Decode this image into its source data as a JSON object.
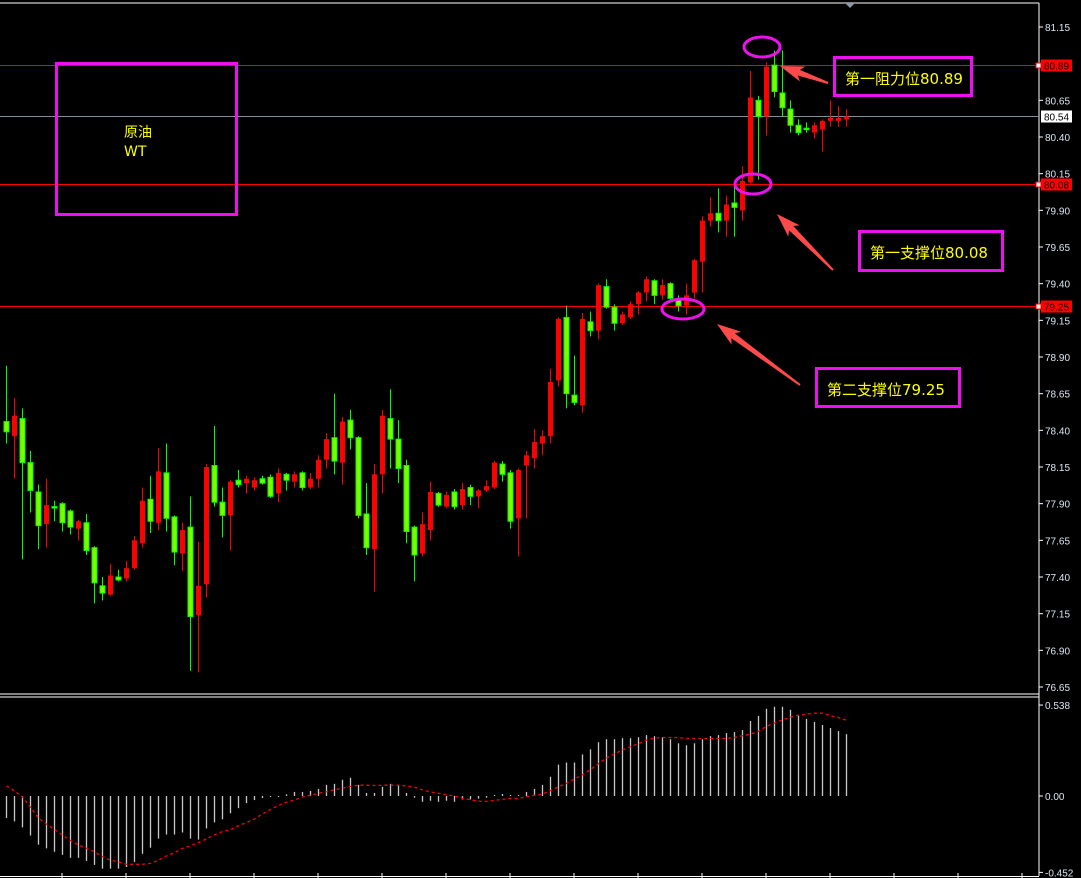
{
  "chart_data": {
    "type": "candlestick",
    "title": "",
    "colors": {
      "up": "#ff0000",
      "down": "#00ff00",
      "down_fill": "#7cfc00",
      "background": "#000000",
      "axis_text": "#dce6f0",
      "annotation_box": "#ee10ee",
      "annotation_text": "#ffff00",
      "arrow": "#ff4a4a",
      "macd_histogram": "#c8c8c8",
      "macd_signal": "#ff0000"
    },
    "price_axis": {
      "ylim": [
        76.65,
        81.15
      ],
      "ticks": [
        "81.15",
        "80.65",
        "80.40",
        "80.15",
        "79.90",
        "79.65",
        "79.40",
        "79.15",
        "78.90",
        "78.65",
        "78.40",
        "78.15",
        "77.90",
        "77.65",
        "77.40",
        "77.15",
        "76.90",
        "76.65"
      ]
    },
    "ohlc": [
      [
        78.46,
        78.84,
        78.31,
        78.39
      ],
      [
        78.36,
        78.62,
        78.07,
        78.5
      ],
      [
        78.48,
        78.55,
        77.52,
        78.18
      ],
      [
        78.18,
        78.26,
        77.84,
        77.99
      ],
      [
        77.98,
        78.03,
        77.59,
        77.75
      ],
      [
        77.76,
        78.07,
        77.6,
        77.89
      ],
      [
        77.88,
        77.92,
        77.78,
        77.87
      ],
      [
        77.9,
        77.91,
        77.71,
        77.77
      ],
      [
        77.85,
        77.86,
        77.69,
        77.74
      ],
      [
        77.73,
        77.79,
        77.65,
        77.78
      ],
      [
        77.77,
        77.83,
        77.55,
        77.58
      ],
      [
        77.6,
        77.61,
        77.22,
        77.36
      ],
      [
        77.34,
        77.4,
        77.24,
        77.29
      ],
      [
        77.28,
        77.49,
        77.27,
        77.41
      ],
      [
        77.4,
        77.45,
        77.37,
        77.38
      ],
      [
        77.39,
        77.51,
        77.37,
        77.46
      ],
      [
        77.46,
        77.68,
        77.45,
        77.65
      ],
      [
        77.63,
        78.01,
        77.6,
        77.92
      ],
      [
        77.93,
        78.09,
        77.7,
        77.78
      ],
      [
        77.77,
        78.28,
        77.72,
        78.12
      ],
      [
        78.11,
        78.31,
        77.71,
        77.8
      ],
      [
        77.81,
        77.82,
        77.48,
        77.57
      ],
      [
        77.56,
        77.77,
        77.44,
        77.72
      ],
      [
        77.74,
        77.95,
        76.76,
        77.13
      ],
      [
        77.14,
        77.64,
        76.75,
        77.34
      ],
      [
        77.35,
        78.17,
        77.26,
        78.15
      ],
      [
        78.16,
        78.43,
        77.88,
        77.91
      ],
      [
        77.91,
        78.01,
        77.67,
        77.82
      ],
      [
        77.82,
        78.06,
        77.58,
        78.05
      ],
      [
        78.06,
        78.13,
        78.01,
        78.03
      ],
      [
        78.04,
        78.09,
        77.97,
        78.07
      ],
      [
        78.01,
        78.08,
        77.99,
        78.06
      ],
      [
        78.07,
        78.09,
        78.03,
        78.04
      ],
      [
        78.08,
        78.1,
        77.94,
        77.95
      ],
      [
        77.97,
        78.14,
        77.91,
        78.11
      ],
      [
        78.1,
        78.11,
        77.99,
        78.06
      ],
      [
        78.05,
        78.12,
        78.01,
        78.1
      ],
      [
        78.11,
        78.12,
        77.99,
        78.01
      ],
      [
        78.01,
        78.11,
        78.0,
        78.07
      ],
      [
        78.07,
        78.23,
        78.01,
        78.2
      ],
      [
        78.2,
        78.38,
        78.14,
        78.34
      ],
      [
        78.35,
        78.65,
        78.1,
        78.19
      ],
      [
        78.18,
        78.49,
        78.03,
        78.46
      ],
      [
        78.47,
        78.54,
        78.27,
        78.35
      ],
      [
        78.35,
        78.36,
        77.8,
        77.82
      ],
      [
        77.83,
        78.04,
        77.55,
        77.6
      ],
      [
        77.59,
        78.17,
        77.3,
        78.1
      ],
      [
        78.1,
        78.54,
        77.97,
        78.5
      ],
      [
        78.48,
        78.68,
        78.14,
        78.34
      ],
      [
        78.34,
        78.47,
        78.04,
        78.14
      ],
      [
        78.16,
        78.2,
        77.63,
        77.71
      ],
      [
        77.74,
        77.75,
        77.37,
        77.55
      ],
      [
        77.56,
        77.84,
        77.54,
        77.76
      ],
      [
        77.72,
        78.05,
        77.65,
        77.98
      ],
      [
        77.97,
        77.98,
        77.88,
        77.89
      ],
      [
        77.88,
        77.98,
        77.87,
        77.96
      ],
      [
        77.98,
        78.0,
        77.86,
        77.88
      ],
      [
        77.89,
        78.04,
        77.86,
        78.0
      ],
      [
        78.01,
        78.03,
        77.89,
        77.95
      ],
      [
        77.95,
        78.0,
        77.87,
        77.99
      ],
      [
        77.99,
        78.06,
        77.98,
        78.02
      ],
      [
        78.01,
        78.19,
        78.0,
        78.18
      ],
      [
        78.17,
        78.19,
        78.05,
        78.1
      ],
      [
        78.11,
        78.13,
        77.73,
        77.78
      ],
      [
        77.8,
        78.14,
        77.54,
        78.13
      ],
      [
        78.16,
        78.26,
        77.8,
        78.23
      ],
      [
        78.21,
        78.41,
        78.14,
        78.32
      ],
      [
        78.31,
        78.4,
        78.23,
        78.36
      ],
      [
        78.36,
        78.82,
        78.31,
        78.73
      ],
      [
        78.74,
        79.17,
        78.7,
        79.16
      ],
      [
        79.17,
        79.25,
        78.55,
        78.65
      ],
      [
        78.64,
        78.91,
        78.57,
        78.59
      ],
      [
        78.57,
        79.2,
        78.52,
        79.16
      ],
      [
        79.14,
        79.21,
        79.04,
        79.08
      ],
      [
        79.08,
        79.4,
        79.02,
        79.39
      ],
      [
        79.38,
        79.43,
        79.23,
        79.24
      ],
      [
        79.24,
        79.26,
        79.08,
        79.13
      ],
      [
        79.13,
        79.21,
        79.12,
        79.19
      ],
      [
        79.17,
        79.28,
        79.16,
        79.26
      ],
      [
        79.26,
        79.35,
        79.19,
        79.34
      ],
      [
        79.34,
        79.45,
        79.28,
        79.43
      ],
      [
        79.42,
        79.43,
        79.26,
        79.32
      ],
      [
        79.32,
        79.43,
        79.29,
        79.39
      ],
      [
        79.4,
        79.41,
        79.29,
        79.3
      ],
      [
        79.29,
        79.32,
        79.21,
        79.25
      ],
      [
        79.25,
        79.4,
        79.19,
        79.32
      ],
      [
        79.34,
        79.57,
        79.3,
        79.56
      ],
      [
        79.55,
        79.86,
        79.34,
        79.83
      ],
      [
        79.83,
        79.99,
        79.79,
        79.88
      ],
      [
        79.88,
        80.05,
        79.75,
        79.83
      ],
      [
        79.83,
        80.0,
        79.72,
        79.94
      ],
      [
        79.95,
        80.06,
        79.72,
        79.92
      ],
      [
        79.9,
        80.2,
        79.83,
        80.1
      ],
      [
        80.09,
        80.85,
        80.08,
        80.67
      ],
      [
        80.65,
        80.68,
        80.11,
        80.54
      ],
      [
        80.54,
        80.91,
        80.41,
        80.88
      ],
      [
        80.89,
        80.99,
        80.67,
        80.71
      ],
      [
        80.7,
        80.99,
        80.54,
        80.6
      ],
      [
        80.59,
        80.65,
        80.43,
        80.48
      ],
      [
        80.48,
        80.52,
        80.41,
        80.43
      ],
      [
        80.46,
        80.5,
        80.43,
        80.45
      ],
      [
        80.43,
        80.5,
        80.39,
        80.48
      ],
      [
        80.45,
        80.52,
        80.3,
        80.51
      ],
      [
        80.51,
        80.65,
        80.47,
        80.53
      ],
      [
        80.51,
        80.61,
        80.47,
        80.53
      ],
      [
        80.52,
        80.59,
        80.47,
        80.54
      ]
    ],
    "horizontal_lines": [
      {
        "price": 80.89,
        "label": "80.89",
        "color": "#ff0000",
        "tag_bg": "#ff0000",
        "tag_fg": "#000000"
      },
      {
        "price": 80.54,
        "label": "80.54",
        "color": "#8090a0",
        "tag_bg": "#ffffff",
        "tag_fg": "#000000"
      },
      {
        "price": 80.08,
        "label": "80.08",
        "color": "#ff0000",
        "tag_bg": "#ff0000",
        "tag_fg": "#000000"
      },
      {
        "price": 79.25,
        "label": "79.25",
        "color": "#ff0000",
        "tag_bg": "#ff0000",
        "tag_fg": "#000000"
      }
    ],
    "macd": {
      "ylim": [
        -0.452,
        0.538
      ],
      "ticks": [
        "0.538",
        "0.00",
        "-0.452"
      ],
      "histogram": [
        -0.13,
        -0.15,
        -0.186,
        -0.234,
        -0.288,
        -0.31,
        -0.33,
        -0.348,
        -0.366,
        -0.366,
        -0.384,
        -0.408,
        -0.43,
        -0.43,
        -0.43,
        -0.42,
        -0.39,
        -0.342,
        -0.306,
        -0.252,
        -0.228,
        -0.228,
        -0.216,
        -0.252,
        -0.258,
        -0.192,
        -0.156,
        -0.138,
        -0.102,
        -0.072,
        -0.042,
        -0.024,
        -0.012,
        -0.006,
        -0.006,
        0.01,
        0.024,
        0.024,
        0.03,
        0.042,
        0.066,
        0.072,
        0.096,
        0.108,
        0.066,
        0.018,
        0.018,
        0.054,
        0.072,
        0.06,
        0.018,
        -0.01,
        -0.034,
        -0.028,
        -0.034,
        -0.028,
        -0.034,
        -0.02,
        -0.02,
        -0.016,
        -0.01,
        0,
        0.012,
        0.006,
        0,
        0.024,
        0.042,
        0.066,
        0.114,
        0.186,
        0.198,
        0.198,
        0.246,
        0.276,
        0.318,
        0.336,
        0.336,
        0.342,
        0.342,
        0.348,
        0.36,
        0.354,
        0.348,
        0.336,
        0.312,
        0.3,
        0.312,
        0.336,
        0.354,
        0.36,
        0.372,
        0.378,
        0.39,
        0.444,
        0.474,
        0.516,
        0.528,
        0.528,
        0.51,
        0.474,
        0.456,
        0.438,
        0.42,
        0.402,
        0.384,
        0.366
      ],
      "signal": [
        0.06,
        0.03,
        -0.006,
        -0.066,
        -0.13,
        -0.166,
        -0.198,
        -0.23,
        -0.264,
        -0.29,
        -0.31,
        -0.33,
        -0.36,
        -0.38,
        -0.39,
        -0.404,
        -0.404,
        -0.404,
        -0.398,
        -0.38,
        -0.354,
        -0.336,
        -0.31,
        -0.294,
        -0.276,
        -0.254,
        -0.23,
        -0.21,
        -0.2,
        -0.176,
        -0.158,
        -0.136,
        -0.106,
        -0.08,
        -0.056,
        -0.036,
        -0.024,
        -0.006,
        0.004,
        0.016,
        0.026,
        0.036,
        0.046,
        0.056,
        0.064,
        0.064,
        0.062,
        0.064,
        0.064,
        0.064,
        0.06,
        0.052,
        0.036,
        0.024,
        0.016,
        0.008,
        0,
        -0.014,
        -0.022,
        -0.03,
        -0.032,
        -0.026,
        -0.02,
        -0.014,
        -0.014,
        -0.004,
        0.004,
        0.012,
        0.032,
        0.054,
        0.076,
        0.1,
        0.126,
        0.156,
        0.192,
        0.224,
        0.25,
        0.272,
        0.292,
        0.31,
        0.33,
        0.342,
        0.346,
        0.346,
        0.346,
        0.34,
        0.34,
        0.34,
        0.34,
        0.34,
        0.34,
        0.346,
        0.356,
        0.366,
        0.382,
        0.412,
        0.432,
        0.45,
        0.466,
        0.478,
        0.484,
        0.49,
        0.49,
        0.476,
        0.464,
        0.448
      ]
    },
    "annotations": {
      "symbol_box": {
        "line1": "原油",
        "line2": "WT"
      },
      "resistance_1": "第一阻力位80.89",
      "support_1": "第一支撑位80.08",
      "support_2": "第二支撑位79.25",
      "circled_candles": [
        96,
        93,
        84
      ],
      "arrows_point_to": [
        "resistance 80.89",
        "support 80.08",
        "support 79.25"
      ]
    }
  }
}
